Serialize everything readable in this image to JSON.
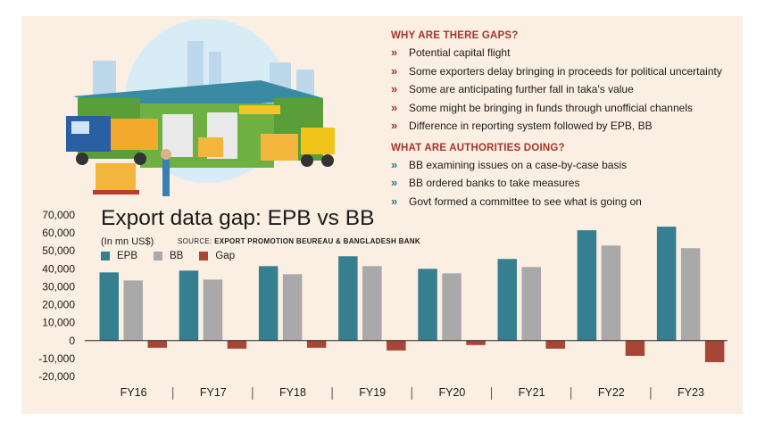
{
  "infobox": {
    "gaps_title": "WHY ARE THERE GAPS?",
    "gaps_items": [
      "Potential capital flight",
      "Some exporters delay bringing in proceeds for political uncertainty",
      "Some are anticipating further fall in taka's value",
      "Some might be bringing in funds through unofficial channels",
      "Difference in reporting system followed by EPB, BB"
    ],
    "authorities_title": "WHAT ARE AUTHORITIES DOING?",
    "authorities_items": [
      "BB examining issues on a case-by-case basis",
      "BB ordered banks to take measures",
      "Govt formed a committee to see what is going on"
    ]
  },
  "colors": {
    "epb": "#357f8f",
    "bb": "#a9a9a9",
    "gap": "#a84636",
    "accent": "#a8352a",
    "panel": "#fbeee2"
  },
  "chart_data": {
    "type": "bar",
    "title": "Export data gap: EPB vs BB",
    "units": "(In mn US$)",
    "source_prefix": "SOURCE:",
    "source": "EXPORT PROMOTION BEUREAU & BANGLADESH BANK",
    "categories": [
      "FY16",
      "FY17",
      "FY18",
      "FY19",
      "FY20",
      "FY21",
      "FY22",
      "FY23"
    ],
    "series": [
      {
        "name": "EPB",
        "values": [
          38000,
          39000,
          41500,
          47000,
          40000,
          45500,
          61500,
          63500
        ]
      },
      {
        "name": "BB",
        "values": [
          33500,
          34000,
          37000,
          41500,
          37500,
          41000,
          53000,
          51500
        ]
      },
      {
        "name": "Gap",
        "values": [
          -4000,
          -4500,
          -4000,
          -5500,
          -2500,
          -4500,
          -8500,
          -12000
        ]
      }
    ],
    "ylim": [
      -20000,
      70000
    ],
    "yticks": [
      70000,
      60000,
      50000,
      40000,
      30000,
      20000,
      10000,
      0,
      -10000,
      -20000
    ],
    "ytick_labels": [
      "70,000",
      "60,000",
      "50,000",
      "40,000",
      "30,000",
      "20,000",
      "10,000",
      "0",
      "-10,000",
      "-20,000"
    ],
    "grid": false,
    "legend_position": "top-left"
  }
}
